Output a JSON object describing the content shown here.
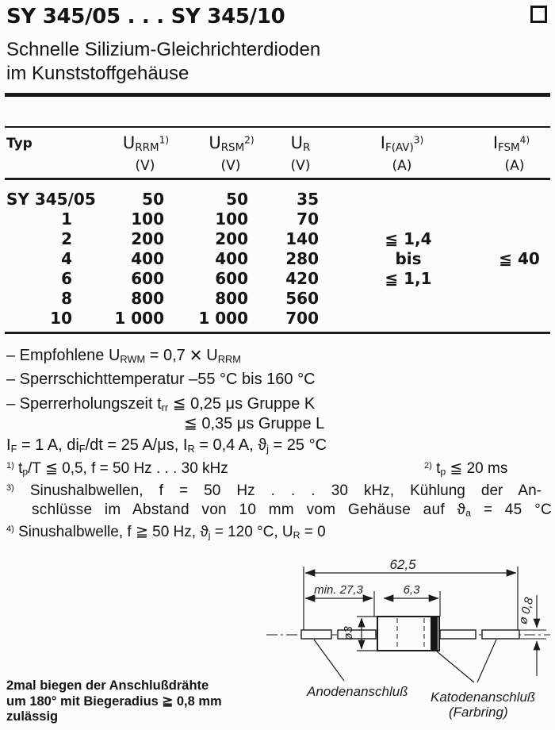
{
  "colors": {
    "ink": "#141414",
    "paper": "#fcfcfa"
  },
  "header": {
    "title": "SY 345/05 . . . SY 345/10",
    "subtitle": "Schnelle Silizium-Gleichrichterdioden\nim Kunststoffgehäuse"
  },
  "table": {
    "typ_header": "Typ",
    "col_urrm": [
      {
        "t": "U"
      },
      {
        "t": "RRM",
        "s": "sub"
      },
      {
        "t": "1)",
        "s": "sup"
      }
    ],
    "col_ursm": [
      {
        "t": "U"
      },
      {
        "t": "RSM",
        "s": "sub"
      },
      {
        "t": "2)",
        "s": "sup"
      }
    ],
    "col_ur": [
      {
        "t": "U"
      },
      {
        "t": "R",
        "s": "sub"
      }
    ],
    "col_ifav": [
      {
        "t": "I"
      },
      {
        "t": "F(AV)",
        "s": "sub"
      },
      {
        "t": "3)",
        "s": "sup"
      }
    ],
    "col_ifsm": [
      {
        "t": "I"
      },
      {
        "t": "FSM",
        "s": "sub"
      },
      {
        "t": "4)",
        "s": "sup"
      }
    ],
    "units": {
      "urrm": "(V)",
      "ursm": "(V)",
      "ur": "(V)",
      "ifav": "(A)",
      "ifsm": "(A)"
    },
    "rows": [
      {
        "typ": "SY 345/05",
        "urrm": "50",
        "ursm": "50",
        "ur": "35"
      },
      {
        "typ": "1",
        "urrm": "100",
        "ursm": "100",
        "ur": "70"
      },
      {
        "typ": "2",
        "urrm": "200",
        "ursm": "200",
        "ur": "140"
      },
      {
        "typ": "4",
        "urrm": "400",
        "ursm": "400",
        "ur": "280"
      },
      {
        "typ": "6",
        "urrm": "600",
        "ursm": "600",
        "ur": "420"
      },
      {
        "typ": "8",
        "urrm": "800",
        "ursm": "800",
        "ur": "560"
      },
      {
        "typ": "10",
        "urrm": "1 000",
        "ursm": "1 000",
        "ur": "700"
      }
    ],
    "ifav_span": [
      "≦ 1,4",
      "bis",
      "≦ 1,1"
    ],
    "ifsm_span": "≦ 40"
  },
  "notes": {
    "dash1": [
      {
        "t": "– Empfohlene U"
      },
      {
        "t": "RWM",
        "s": "sub"
      },
      {
        "t": " = 0,7 "
      },
      {
        "t": "×",
        "s": "x"
      },
      {
        "t": " U"
      },
      {
        "t": "RRM",
        "s": "sub"
      }
    ],
    "dash2": "– Sperrschichttemperatur –55 °C bis 160 °C",
    "dash3": [
      {
        "t": "– Sperrerholungszeit t"
      },
      {
        "t": "rr",
        "s": "sub"
      },
      {
        "t": " ≦ 0,25 μs Gruppe K"
      }
    ],
    "dash4": "≦ 0,35 μs Gruppe L",
    "cond": [
      {
        "t": "I"
      },
      {
        "t": "F",
        "s": "sub"
      },
      {
        "t": " = 1 A, di"
      },
      {
        "t": "F",
        "s": "sub"
      },
      {
        "t": "/dt = 25 A/μs, I"
      },
      {
        "t": "R",
        "s": "sub"
      },
      {
        "t": " = 0,4 A, ϑ"
      },
      {
        "t": "j",
        "s": "sub"
      },
      {
        "t": " = 25 °C"
      }
    ]
  },
  "footnotes": {
    "f1": [
      {
        "t": "1)",
        "s": "sup"
      },
      {
        "t": " t"
      },
      {
        "t": "p",
        "s": "sub"
      },
      {
        "t": "/T ≦ 0,5, f = 50 Hz . . . 30 kHz"
      }
    ],
    "f2": [
      {
        "t": "2)",
        "s": "sup"
      },
      {
        "t": " t"
      },
      {
        "t": "p",
        "s": "sub"
      },
      {
        "t": " ≦ 20 ms"
      }
    ],
    "f3a": [
      {
        "t": "3)",
        "s": "sup"
      },
      {
        "t": " Sinushalbwellen, f = 50 Hz . . . 30 kHz, Kühlung der An-"
      }
    ],
    "f3b": [
      {
        "t": "schlüsse im Abstand von 10 mm vom Gehäuse auf ϑ"
      },
      {
        "t": "a",
        "s": "sub"
      },
      {
        "t": " = 45 °C"
      }
    ],
    "f4": [
      {
        "t": "4)",
        "s": "sup"
      },
      {
        "t": " Sinushalbwelle, f ≧ 50 Hz, ϑ"
      },
      {
        "t": "j",
        "s": "sub"
      },
      {
        "t": " = 120 °C, U"
      },
      {
        "t": "R",
        "s": "sub"
      },
      {
        "t": " = 0"
      }
    ]
  },
  "bend_note": "2mal biegen der Anschlußdrähte\num 180° mit Biegeradius ≧ 0,8 mm\nzulässig",
  "drawing": {
    "dim_total": "62,5",
    "dim_lead_min": "min. 27,3",
    "dim_body": "6,3",
    "dim_body_dia": "ø3",
    "dim_lead_dia": "ø 0,8",
    "label_anode": "Anodenanschluß",
    "label_cathode": "Katodenanschluß",
    "label_cathode2": "(Farbring)"
  }
}
